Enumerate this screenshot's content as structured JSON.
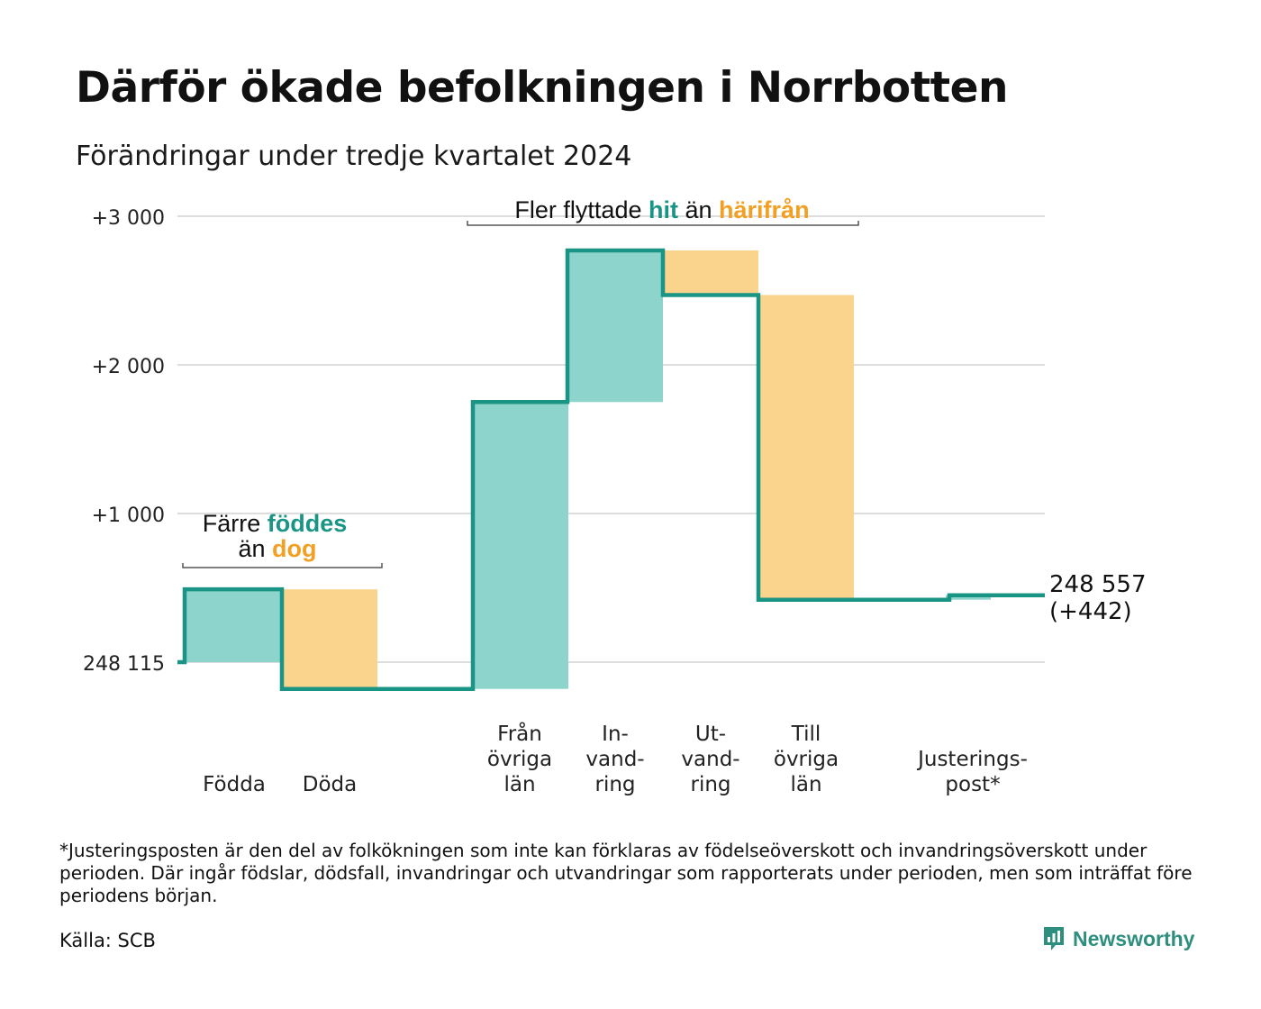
{
  "title": "Därför ökade befolkningen i Norrbotten",
  "subtitle": "Förändringar under tredje kvartalet 2024",
  "footnote": "*Justeringsposten är den del av folkökningen som inte kan förklaras av födelseöverskott och invandringsöverskott under perioden. Där ingår födslar, dödsfall, invandringar och utvandringar som rapporterats under perioden, men som inträffat före periodens början.",
  "source": "Källa: SCB",
  "brand": {
    "name": "Newsworthy",
    "icon": "newsworthy-logo-icon"
  },
  "colors": {
    "increase": "#8dd5cc",
    "decrease": "#fad48c",
    "line": "#1a9585",
    "hit_text": "#1a9585",
    "harifran_text": "#f2a024",
    "grid": "#dddddd",
    "bracket": "#555555"
  },
  "chart_data": {
    "type": "waterfall",
    "base_population": 248115,
    "y_ticks": [
      {
        "value": 3000,
        "label": "+3 000"
      },
      {
        "value": 2000,
        "label": "+2 000"
      },
      {
        "value": 1000,
        "label": "+1 000"
      },
      {
        "value": 0,
        "label": "248 115"
      }
    ],
    "ylim": [
      -200,
      3100
    ],
    "steps": [
      {
        "label": [
          "Födda"
        ],
        "change": 490
      },
      {
        "label": [
          "Döda"
        ],
        "change": -670
      },
      {
        "label": [
          "Från",
          "övriga",
          "län"
        ],
        "change": 1930
      },
      {
        "label": [
          "In-",
          "vand-",
          "ring"
        ],
        "change": 1020
      },
      {
        "label": [
          "Ut-",
          "vand-",
          "ring"
        ],
        "change": -300
      },
      {
        "label": [
          "Till",
          "övriga",
          "län"
        ],
        "change": -2050
      },
      {
        "label": [
          "Justerings-",
          "post*"
        ],
        "change": 30
      }
    ],
    "end_label": [
      "248 557",
      "(+442)"
    ],
    "annotations": [
      {
        "id": "births",
        "line1": [
          "Färre ",
          "föddes"
        ],
        "line2": [
          "än ",
          "dog"
        ]
      },
      {
        "id": "migration",
        "parts": [
          "Fler flyttade",
          "hit",
          "än",
          "härifrån"
        ]
      }
    ]
  }
}
